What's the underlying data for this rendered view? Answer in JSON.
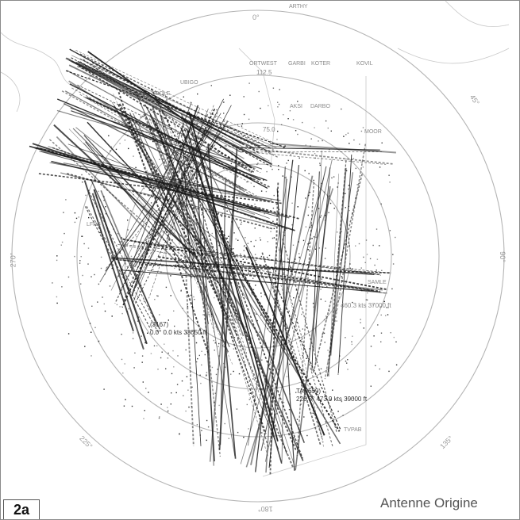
{
  "figure": {
    "label": "2a",
    "caption": "Antenne Origine"
  },
  "range_labels": [
    "112.5",
    "75.0"
  ],
  "bearing_labels": [
    "0°",
    "45°",
    "90°",
    "135°",
    "180°",
    "225°",
    "270°"
  ],
  "waypoints": [
    "ARTHY",
    "ORTWEST",
    "GARBI",
    "KOTER",
    "KOVIL",
    "UBIGO",
    "AKSI",
    "DARBO",
    "MOOR",
    "SAMLE",
    "TVPAB",
    "LFRB",
    "SBOLE"
  ],
  "track_labels": [
    {
      "id": "(3167)",
      "info": "0.0° 0.0 kts 33050 ft"
    },
    {
      "id": "TAP659)",
      "info": "226.5° 473.9 kts 39000 ft"
    },
    {
      "id": "",
      "info": "460.3 kts 37000 ft"
    }
  ],
  "colors": {
    "rings": "#b4b4b4",
    "tracks": "#1a1a1a",
    "coast": "#c8c8c8"
  }
}
